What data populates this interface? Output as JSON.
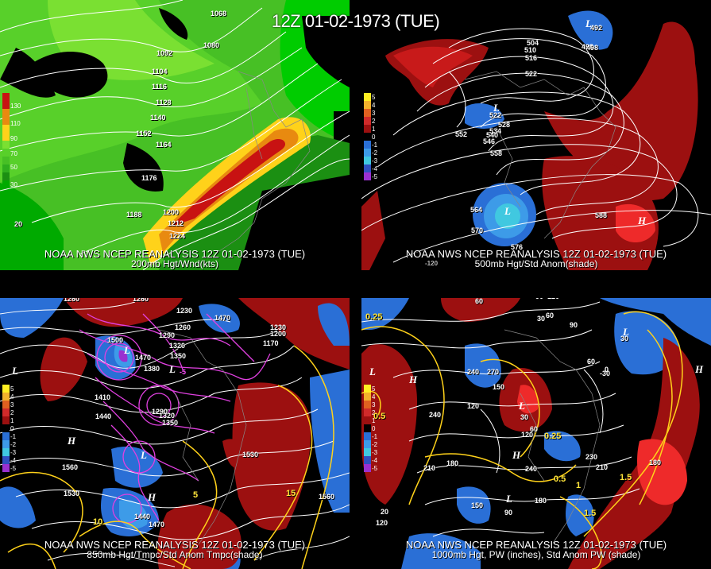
{
  "title": "12Z 01-02-1973 (TUE)",
  "panels": [
    {
      "id": "p200",
      "caption1": "NOAA NWS NCEP REANALYSIS 12Z 01-02-1973 (TUE)",
      "caption2": "200mb Hgt/Wnd(kts)",
      "legend_values": [
        "130",
        "110",
        "90",
        "70",
        "50",
        "30"
      ],
      "contour_labels": [
        "1068",
        "1080",
        "1092",
        "1104",
        "1116",
        "1128",
        "1140",
        "1152",
        "1164",
        "1176",
        "1188",
        "1200",
        "1212",
        "1224",
        "20"
      ]
    },
    {
      "id": "p500",
      "caption1": "NOAA NWS NCEP REANALYSIS 12Z 01-02-1973 (TUE)",
      "caption2": "500mb Hgt/Std Anom(shade)",
      "legend_values": [
        "5",
        "4",
        "3",
        "2",
        "1",
        "0",
        "-1",
        "-2",
        "-3",
        "-4",
        "-5"
      ],
      "contour_labels": [
        "492",
        "498",
        "504",
        "510",
        "516",
        "522",
        "528",
        "534",
        "540",
        "546",
        "552",
        "558",
        "564",
        "570",
        "576",
        "588",
        "522",
        "498",
        "-120"
      ],
      "symbols": [
        "L",
        "L",
        "L",
        "H"
      ]
    },
    {
      "id": "p850",
      "caption1": "NOAA NWS NCEP REANALYSIS 12Z 01-02-1973 (TUE)",
      "caption2": "850mb Hgt/Tmpc/Std Anom Tmpc(shade)",
      "legend_values": [
        "5",
        "4",
        "3",
        "2",
        "1",
        "0",
        "-1",
        "-2",
        "-3",
        "-4",
        "-5"
      ],
      "contour_labels": [
        "1260",
        "1260",
        "1230",
        "1260",
        "1470",
        "1290",
        "1320",
        "1350",
        "1500",
        "1470",
        "1380",
        "1410",
        "1440",
        "1290",
        "1320",
        "1350",
        "1200",
        "1170",
        "1230",
        "1530",
        "1560",
        "1530",
        "1440",
        "1470",
        "1560"
      ],
      "temp_labels": [
        "-5",
        "5",
        "10",
        "15"
      ],
      "symbols": [
        "L",
        "L",
        "H",
        "L",
        "H",
        "L"
      ]
    },
    {
      "id": "p1000",
      "caption1": "NOAA NWS NCEP REANALYSIS 12Z 01-02-1973 (TUE)",
      "caption2": "1000mb Hgt, PW (inches), Std Anom PW (shade)",
      "legend_values": [
        "5",
        "4",
        "3",
        "2",
        "1",
        "0",
        "-1",
        "-2",
        "-3",
        "-4",
        "-5"
      ],
      "contour_labels": [
        "60",
        "90",
        "120",
        "60",
        "30",
        "90",
        "60",
        "0",
        "30",
        "270",
        "240",
        "150",
        "120",
        "240",
        "210",
        "180",
        "30",
        "60",
        "120",
        "240",
        "210",
        "180",
        "150",
        "90",
        "180",
        "120",
        "20",
        "-30",
        "230"
      ],
      "pw_labels": [
        "0.25",
        "0.5",
        "0.25",
        "0.5",
        "1",
        "1.5",
        "1.5"
      ],
      "symbols": [
        "L",
        "H",
        "L",
        "H",
        "H",
        "L",
        "L"
      ]
    }
  ]
}
